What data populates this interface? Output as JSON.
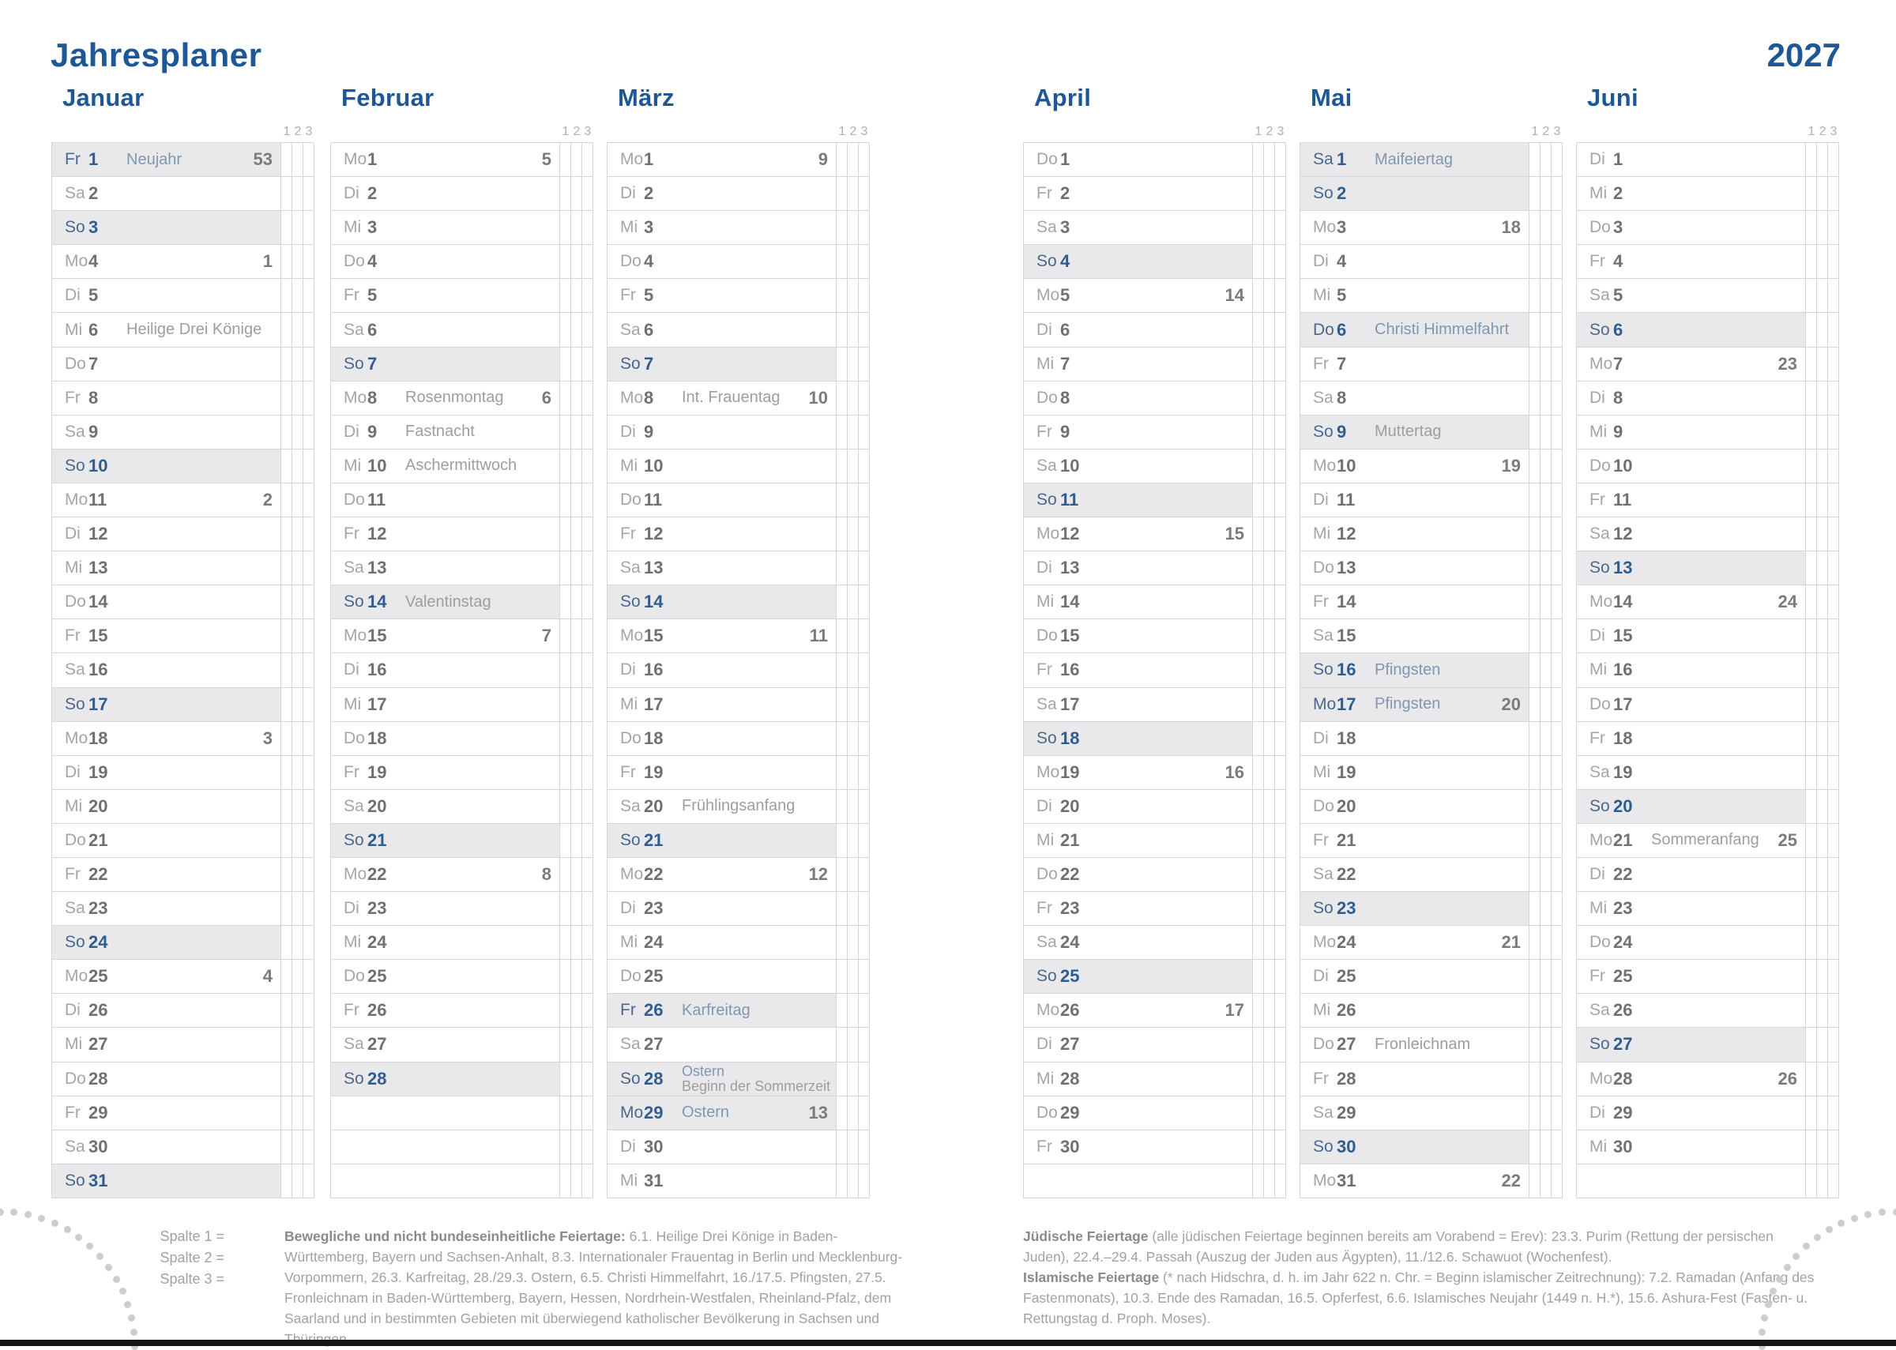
{
  "header": {
    "title": "Jahresplaner",
    "year": "2027"
  },
  "column_header_numbers": [
    "1",
    "2",
    "3"
  ],
  "colors": {
    "accent_blue": "#1d5795",
    "day_blue": "#2f5d92",
    "holiday_blue": "#8097b3",
    "row_highlight": "#e9e9eb",
    "grid_border": "#d6d6d6",
    "text_gray": "#9e9e9e",
    "bar_black": "#161616"
  },
  "months": [
    {
      "name": "Januar",
      "blanks": 0,
      "days": [
        {
          "w": "Fr",
          "n": "1",
          "hol": "Neujahr",
          "wk": "53",
          "su": true,
          "hb": true
        },
        {
          "w": "Sa",
          "n": "2"
        },
        {
          "w": "So",
          "n": "3",
          "su": true
        },
        {
          "w": "Mo",
          "n": "4",
          "wk": "1"
        },
        {
          "w": "Di",
          "n": "5"
        },
        {
          "w": "Mi",
          "n": "6",
          "hol": "Heilige Drei Könige"
        },
        {
          "w": "Do",
          "n": "7"
        },
        {
          "w": "Fr",
          "n": "8"
        },
        {
          "w": "Sa",
          "n": "9"
        },
        {
          "w": "So",
          "n": "10",
          "su": true
        },
        {
          "w": "Mo",
          "n": "11",
          "wk": "2"
        },
        {
          "w": "Di",
          "n": "12"
        },
        {
          "w": "Mi",
          "n": "13"
        },
        {
          "w": "Do",
          "n": "14"
        },
        {
          "w": "Fr",
          "n": "15"
        },
        {
          "w": "Sa",
          "n": "16"
        },
        {
          "w": "So",
          "n": "17",
          "su": true
        },
        {
          "w": "Mo",
          "n": "18",
          "wk": "3"
        },
        {
          "w": "Di",
          "n": "19"
        },
        {
          "w": "Mi",
          "n": "20"
        },
        {
          "w": "Do",
          "n": "21"
        },
        {
          "w": "Fr",
          "n": "22"
        },
        {
          "w": "Sa",
          "n": "23"
        },
        {
          "w": "So",
          "n": "24",
          "su": true
        },
        {
          "w": "Mo",
          "n": "25",
          "wk": "4"
        },
        {
          "w": "Di",
          "n": "26"
        },
        {
          "w": "Mi",
          "n": "27"
        },
        {
          "w": "Do",
          "n": "28"
        },
        {
          "w": "Fr",
          "n": "29"
        },
        {
          "w": "Sa",
          "n": "30"
        },
        {
          "w": "So",
          "n": "31",
          "su": true
        }
      ]
    },
    {
      "name": "Februar",
      "blanks": 3,
      "days": [
        {
          "w": "Mo",
          "n": "1",
          "wk": "5"
        },
        {
          "w": "Di",
          "n": "2"
        },
        {
          "w": "Mi",
          "n": "3"
        },
        {
          "w": "Do",
          "n": "4"
        },
        {
          "w": "Fr",
          "n": "5"
        },
        {
          "w": "Sa",
          "n": "6"
        },
        {
          "w": "So",
          "n": "7",
          "su": true
        },
        {
          "w": "Mo",
          "n": "8",
          "hol": "Rosenmontag",
          "wk": "6"
        },
        {
          "w": "Di",
          "n": "9",
          "hol": "Fastnacht"
        },
        {
          "w": "Mi",
          "n": "10",
          "hol": "Aschermittwoch"
        },
        {
          "w": "Do",
          "n": "11"
        },
        {
          "w": "Fr",
          "n": "12"
        },
        {
          "w": "Sa",
          "n": "13"
        },
        {
          "w": "So",
          "n": "14",
          "hol": "Valentinstag",
          "su": true
        },
        {
          "w": "Mo",
          "n": "15",
          "wk": "7"
        },
        {
          "w": "Di",
          "n": "16"
        },
        {
          "w": "Mi",
          "n": "17"
        },
        {
          "w": "Do",
          "n": "18"
        },
        {
          "w": "Fr",
          "n": "19"
        },
        {
          "w": "Sa",
          "n": "20"
        },
        {
          "w": "So",
          "n": "21",
          "su": true
        },
        {
          "w": "Mo",
          "n": "22",
          "wk": "8"
        },
        {
          "w": "Di",
          "n": "23"
        },
        {
          "w": "Mi",
          "n": "24"
        },
        {
          "w": "Do",
          "n": "25"
        },
        {
          "w": "Fr",
          "n": "26"
        },
        {
          "w": "Sa",
          "n": "27"
        },
        {
          "w": "So",
          "n": "28",
          "su": true
        }
      ]
    },
    {
      "name": "März",
      "blanks": 0,
      "days": [
        {
          "w": "Mo",
          "n": "1",
          "wk": "9"
        },
        {
          "w": "Di",
          "n": "2"
        },
        {
          "w": "Mi",
          "n": "3"
        },
        {
          "w": "Do",
          "n": "4"
        },
        {
          "w": "Fr",
          "n": "5"
        },
        {
          "w": "Sa",
          "n": "6"
        },
        {
          "w": "So",
          "n": "7",
          "su": true
        },
        {
          "w": "Mo",
          "n": "8",
          "hol": "Int. Frauentag",
          "wk": "10"
        },
        {
          "w": "Di",
          "n": "9"
        },
        {
          "w": "Mi",
          "n": "10"
        },
        {
          "w": "Do",
          "n": "11"
        },
        {
          "w": "Fr",
          "n": "12"
        },
        {
          "w": "Sa",
          "n": "13"
        },
        {
          "w": "So",
          "n": "14",
          "su": true
        },
        {
          "w": "Mo",
          "n": "15",
          "wk": "11"
        },
        {
          "w": "Di",
          "n": "16"
        },
        {
          "w": "Mi",
          "n": "17"
        },
        {
          "w": "Do",
          "n": "18"
        },
        {
          "w": "Fr",
          "n": "19"
        },
        {
          "w": "Sa",
          "n": "20",
          "hol": "Frühlingsanfang"
        },
        {
          "w": "So",
          "n": "21",
          "su": true
        },
        {
          "w": "Mo",
          "n": "22",
          "wk": "12"
        },
        {
          "w": "Di",
          "n": "23"
        },
        {
          "w": "Mi",
          "n": "24"
        },
        {
          "w": "Do",
          "n": "25"
        },
        {
          "w": "Fr",
          "n": "26",
          "hol": "Karfreitag",
          "su": true,
          "hb": true
        },
        {
          "w": "Sa",
          "n": "27"
        },
        {
          "w": "So",
          "n": "28",
          "hol": "Ostern",
          "hol2": "Beginn der Sommerzeit",
          "su": true,
          "hb": true
        },
        {
          "w": "Mo",
          "n": "29",
          "hol": "Ostern",
          "wk": "13",
          "su": true,
          "hb": true
        },
        {
          "w": "Di",
          "n": "30"
        },
        {
          "w": "Mi",
          "n": "31"
        }
      ]
    },
    {
      "name": "April",
      "blanks": 1,
      "days": [
        {
          "w": "Do",
          "n": "1"
        },
        {
          "w": "Fr",
          "n": "2"
        },
        {
          "w": "Sa",
          "n": "3"
        },
        {
          "w": "So",
          "n": "4",
          "su": true
        },
        {
          "w": "Mo",
          "n": "5",
          "wk": "14"
        },
        {
          "w": "Di",
          "n": "6"
        },
        {
          "w": "Mi",
          "n": "7"
        },
        {
          "w": "Do",
          "n": "8"
        },
        {
          "w": "Fr",
          "n": "9"
        },
        {
          "w": "Sa",
          "n": "10"
        },
        {
          "w": "So",
          "n": "11",
          "su": true
        },
        {
          "w": "Mo",
          "n": "12",
          "wk": "15"
        },
        {
          "w": "Di",
          "n": "13"
        },
        {
          "w": "Mi",
          "n": "14"
        },
        {
          "w": "Do",
          "n": "15"
        },
        {
          "w": "Fr",
          "n": "16"
        },
        {
          "w": "Sa",
          "n": "17"
        },
        {
          "w": "So",
          "n": "18",
          "su": true
        },
        {
          "w": "Mo",
          "n": "19",
          "wk": "16"
        },
        {
          "w": "Di",
          "n": "20"
        },
        {
          "w": "Mi",
          "n": "21"
        },
        {
          "w": "Do",
          "n": "22"
        },
        {
          "w": "Fr",
          "n": "23"
        },
        {
          "w": "Sa",
          "n": "24"
        },
        {
          "w": "So",
          "n": "25",
          "su": true
        },
        {
          "w": "Mo",
          "n": "26",
          "wk": "17"
        },
        {
          "w": "Di",
          "n": "27"
        },
        {
          "w": "Mi",
          "n": "28"
        },
        {
          "w": "Do",
          "n": "29"
        },
        {
          "w": "Fr",
          "n": "30"
        }
      ]
    },
    {
      "name": "Mai",
      "blanks": 0,
      "days": [
        {
          "w": "Sa",
          "n": "1",
          "hol": "Maifeiertag",
          "su": true,
          "hb": true
        },
        {
          "w": "So",
          "n": "2",
          "su": true
        },
        {
          "w": "Mo",
          "n": "3",
          "wk": "18"
        },
        {
          "w": "Di",
          "n": "4"
        },
        {
          "w": "Mi",
          "n": "5"
        },
        {
          "w": "Do",
          "n": "6",
          "hol": "Christi Himmelfahrt",
          "su": true,
          "hb": true
        },
        {
          "w": "Fr",
          "n": "7"
        },
        {
          "w": "Sa",
          "n": "8"
        },
        {
          "w": "So",
          "n": "9",
          "hol": "Muttertag",
          "su": true
        },
        {
          "w": "Mo",
          "n": "10",
          "wk": "19"
        },
        {
          "w": "Di",
          "n": "11"
        },
        {
          "w": "Mi",
          "n": "12"
        },
        {
          "w": "Do",
          "n": "13"
        },
        {
          "w": "Fr",
          "n": "14"
        },
        {
          "w": "Sa",
          "n": "15"
        },
        {
          "w": "So",
          "n": "16",
          "hol": "Pfingsten",
          "su": true,
          "hb": true
        },
        {
          "w": "Mo",
          "n": "17",
          "hol": "Pfingsten",
          "wk": "20",
          "su": true,
          "hb": true
        },
        {
          "w": "Di",
          "n": "18"
        },
        {
          "w": "Mi",
          "n": "19"
        },
        {
          "w": "Do",
          "n": "20"
        },
        {
          "w": "Fr",
          "n": "21"
        },
        {
          "w": "Sa",
          "n": "22"
        },
        {
          "w": "So",
          "n": "23",
          "su": true
        },
        {
          "w": "Mo",
          "n": "24",
          "wk": "21"
        },
        {
          "w": "Di",
          "n": "25"
        },
        {
          "w": "Mi",
          "n": "26"
        },
        {
          "w": "Do",
          "n": "27",
          "hol": "Fronleichnam"
        },
        {
          "w": "Fr",
          "n": "28"
        },
        {
          "w": "Sa",
          "n": "29"
        },
        {
          "w": "So",
          "n": "30",
          "su": true
        },
        {
          "w": "Mo",
          "n": "31",
          "wk": "22"
        }
      ]
    },
    {
      "name": "Juni",
      "blanks": 1,
      "days": [
        {
          "w": "Di",
          "n": "1"
        },
        {
          "w": "Mi",
          "n": "2"
        },
        {
          "w": "Do",
          "n": "3"
        },
        {
          "w": "Fr",
          "n": "4"
        },
        {
          "w": "Sa",
          "n": "5"
        },
        {
          "w": "So",
          "n": "6",
          "su": true
        },
        {
          "w": "Mo",
          "n": "7",
          "wk": "23"
        },
        {
          "w": "Di",
          "n": "8"
        },
        {
          "w": "Mi",
          "n": "9"
        },
        {
          "w": "Do",
          "n": "10"
        },
        {
          "w": "Fr",
          "n": "11"
        },
        {
          "w": "Sa",
          "n": "12"
        },
        {
          "w": "So",
          "n": "13",
          "su": true
        },
        {
          "w": "Mo",
          "n": "14",
          "wk": "24"
        },
        {
          "w": "Di",
          "n": "15"
        },
        {
          "w": "Mi",
          "n": "16"
        },
        {
          "w": "Do",
          "n": "17"
        },
        {
          "w": "Fr",
          "n": "18"
        },
        {
          "w": "Sa",
          "n": "19"
        },
        {
          "w": "So",
          "n": "20",
          "su": true
        },
        {
          "w": "Mo",
          "n": "21",
          "hol": "Sommeranfang",
          "wk": "25"
        },
        {
          "w": "Di",
          "n": "22"
        },
        {
          "w": "Mi",
          "n": "23"
        },
        {
          "w": "Do",
          "n": "24"
        },
        {
          "w": "Fr",
          "n": "25"
        },
        {
          "w": "Sa",
          "n": "26"
        },
        {
          "w": "So",
          "n": "27",
          "su": true
        },
        {
          "w": "Mo",
          "n": "28",
          "wk": "26"
        },
        {
          "w": "Di",
          "n": "29"
        },
        {
          "w": "Mi",
          "n": "30"
        }
      ]
    }
  ],
  "footer": {
    "legend": [
      "Spalte  1 =",
      "Spalte  2 =",
      "Spalte  3 ="
    ],
    "movable": {
      "lead": "Bewegliche und nicht bundeseinheitliche Feiertage:",
      "text": " 6.1. Heilige Drei Könige in Baden-Württemberg, Bayern und Sachsen-Anhalt, 8.3. Internationaler Frauentag in Berlin und Mecklenburg-Vorpommern, 26.3. Karfreitag, 28./29.3. Ostern, 6.5. Christi Himmelfahrt, 16./17.5. Pfingsten, 27.5. Fronleichnam in Baden-Württemberg, Bayern, Hessen, Nordrhein-Westfalen, Rheinland-Pfalz, dem Saarland und in bestimmten Gebieten mit überwiegend katholischer Bevölkerung in Sachsen und Thüringen."
    },
    "jewish": {
      "lead": "Jüdische Feiertage",
      "text": " (alle jüdischen Feiertage beginnen bereits am Vorabend = Erev): 23.3. Purim (Rettung der persischen Juden), 22.4.–29.4. Passah (Auszug der Juden aus Ägypten), 11./12.6. Schawuot (Wochenfest)."
    },
    "islamic": {
      "lead": "Islamische Feiertage",
      "text": " (* nach Hidschra, d. h. im Jahr 622 n. Chr. = Beginn islamischer Zeitrechnung): 7.2. Ramadan (Anfang des Fastenmonats), 10.3. Ende des Ramadan, 16.5. Opferfest,  6.6. Islamisches Neujahr (1449 n. H.*), 15.6. Ashura-Fest (Fasten- u. Rettungstag d. Proph. Moses)."
    }
  }
}
